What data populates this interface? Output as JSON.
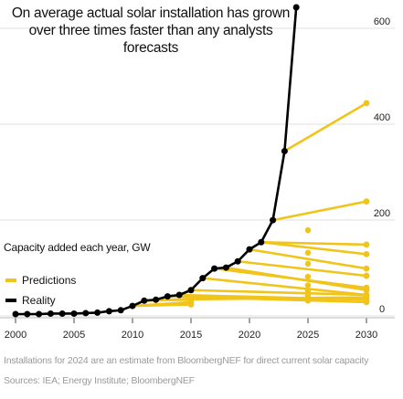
{
  "title_lines": [
    "On average actual solar installation has grown",
    "over three times faster than any analysts",
    "forecasts"
  ],
  "legend": {
    "predictions_label": "Predictions",
    "reality_label": "Reality",
    "predictions_color": "#f0c419",
    "reality_color": "#000000"
  },
  "footer": {
    "note": "Installations for 2024 are an estimate from BloombergNEF for direct current solar capacity",
    "sources": "Sources: IEA; Energy Institute; BloombergNEF"
  },
  "chart_data": {
    "type": "line",
    "title": "On average actual solar installation has grown over three times faster than any analysts forecasts",
    "ylabel": "Capacity added each year, GW",
    "xlabel": "",
    "xlim": [
      2000,
      2030
    ],
    "ylim": [
      0,
      640
    ],
    "x_ticks": [
      2000,
      2005,
      2010,
      2015,
      2020,
      2025,
      2030
    ],
    "y_ticks": [
      0,
      200,
      400,
      600
    ],
    "y_axis_side": "right",
    "legend_position": "left",
    "series": [
      {
        "name": "Reality",
        "color": "#000000",
        "x": [
          2000,
          2001,
          2002,
          2003,
          2004,
          2005,
          2006,
          2007,
          2008,
          2009,
          2010,
          2011,
          2012,
          2013,
          2014,
          2015,
          2016,
          2017,
          2018,
          2019,
          2020,
          2021,
          2022,
          2023,
          2024
        ],
        "y": [
          0,
          0,
          0,
          1,
          1,
          1,
          2,
          3,
          6,
          8,
          17,
          28,
          30,
          37,
          40,
          50,
          75,
          95,
          97,
          110,
          135,
          150,
          196,
          340,
          640
        ]
      }
    ],
    "predictions": [
      {
        "x": [
          2010,
          2015
        ],
        "y": [
          17,
          20
        ]
      },
      {
        "x": [
          2010,
          2015
        ],
        "y": [
          17,
          25
        ]
      },
      {
        "x": [
          2011,
          2015
        ],
        "y": [
          28,
          30
        ]
      },
      {
        "x": [
          2012,
          2030
        ],
        "y": [
          30,
          35
        ]
      },
      {
        "x": [
          2013,
          2030
        ],
        "y": [
          37,
          25
        ]
      },
      {
        "x": [
          2014,
          2030
        ],
        "y": [
          40,
          30
        ]
      },
      {
        "x": [
          2015,
          2030
        ],
        "y": [
          50,
          40
        ]
      },
      {
        "x": [
          2016,
          2030
        ],
        "y": [
          75,
          40
        ]
      },
      {
        "x": [
          2017,
          2030
        ],
        "y": [
          95,
          55
        ]
      },
      {
        "x": [
          2018,
          2030
        ],
        "y": [
          97,
          50
        ]
      },
      {
        "x": [
          2019,
          2030
        ],
        "y": [
          110,
          80
        ]
      },
      {
        "x": [
          2020,
          2030
        ],
        "y": [
          135,
          95
        ]
      },
      {
        "x": [
          2021,
          2030
        ],
        "y": [
          150,
          125
        ]
      },
      {
        "x": [
          2021,
          2030
        ],
        "y": [
          150,
          145
        ]
      },
      {
        "x": [
          2022,
          2030
        ],
        "y": [
          196,
          235
        ]
      },
      {
        "x": [
          2023,
          2030
        ],
        "y": [
          340,
          440
        ]
      }
    ]
  }
}
